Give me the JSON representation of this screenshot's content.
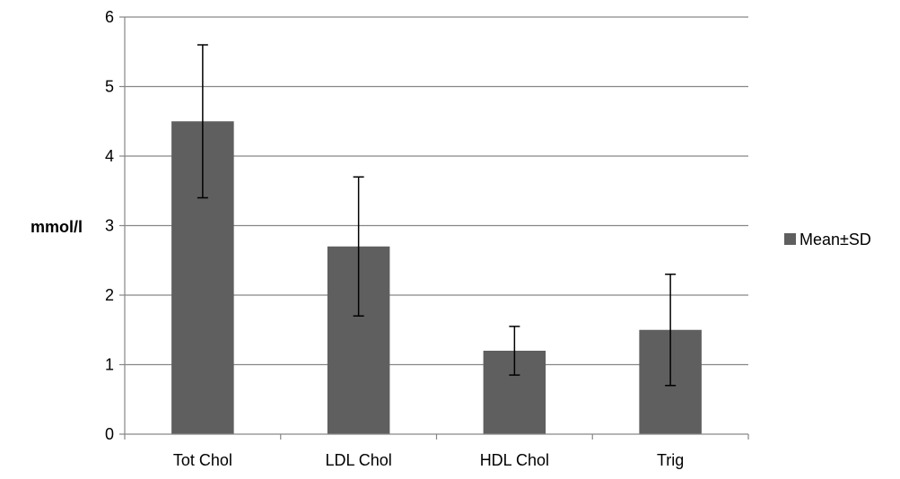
{
  "chart_data": {
    "type": "bar",
    "title": "",
    "xlabel": "",
    "ylabel": "mmol/l",
    "ylim": [
      0,
      6
    ],
    "yticks": [
      0,
      1,
      2,
      3,
      4,
      5,
      6
    ],
    "grid": true,
    "legend_position": "right",
    "categories": [
      "Tot Chol",
      "LDL Chol",
      "HDL Chol",
      "Trig"
    ],
    "series": [
      {
        "name": "Mean±SD",
        "values": [
          4.5,
          2.7,
          1.2,
          1.5
        ],
        "error_low": [
          3.4,
          1.7,
          0.85,
          0.7
        ],
        "error_high": [
          5.6,
          3.7,
          1.55,
          2.3
        ]
      }
    ]
  },
  "colors": {
    "bar": "#5f5f5f",
    "grid": "#868686",
    "axis": "#868686",
    "error_bar": "#000000"
  }
}
